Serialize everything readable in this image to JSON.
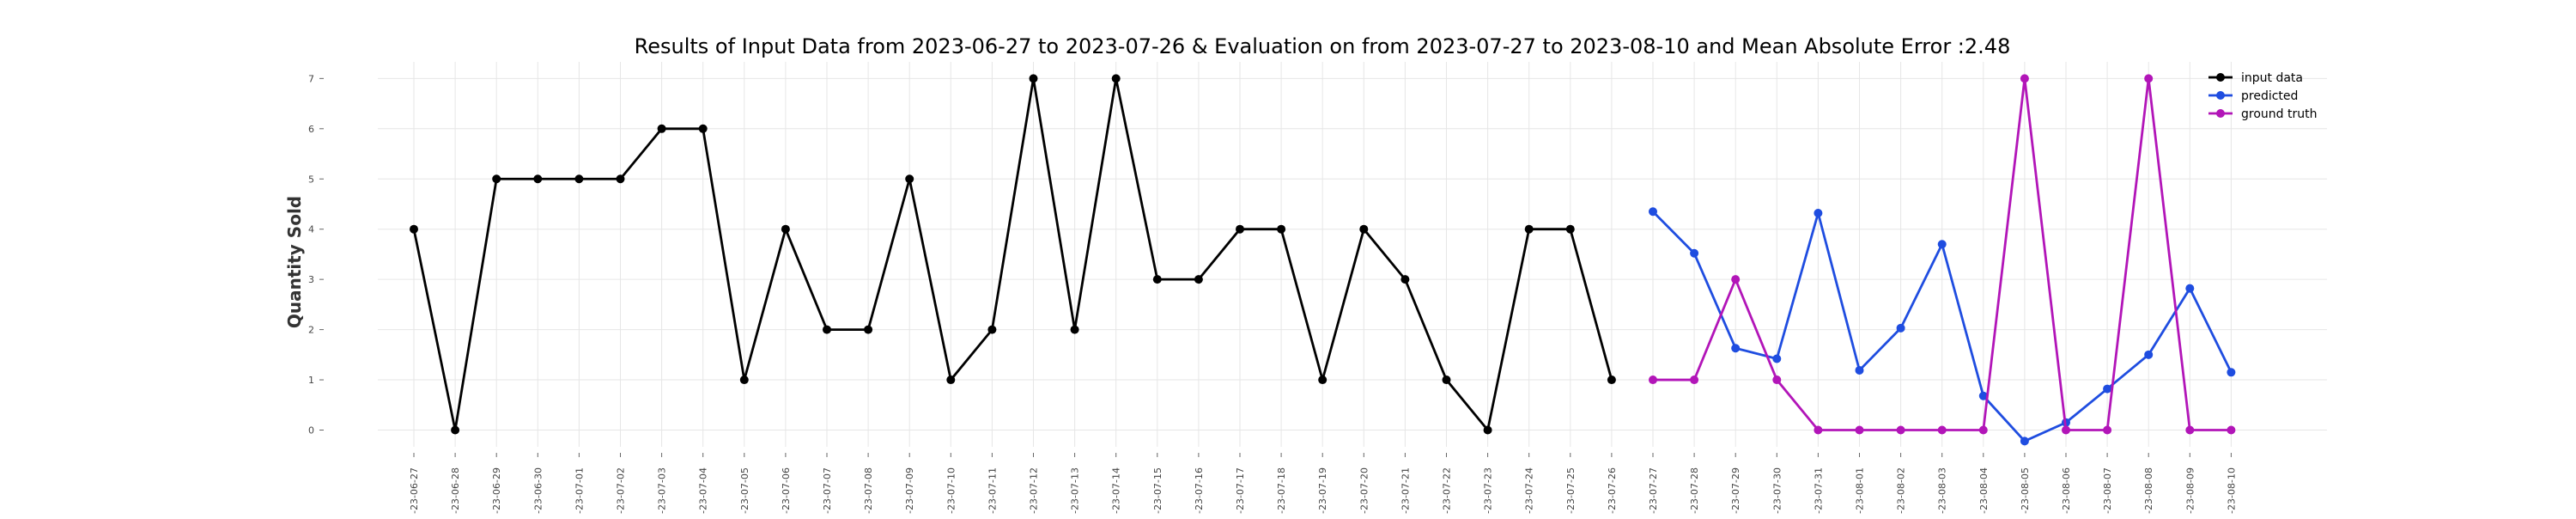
{
  "chart_data": {
    "type": "line",
    "title": "Results of Input Data from 2023-06-27 to 2023-07-26 & Evaluation on from 2023-07-27 to 2023-08-10 and Mean Absolute Error  :2.48",
    "xlabel": "",
    "ylabel": "Quantity Sold",
    "ylim": [
      -0.25,
      7.0
    ],
    "y_ticks": [
      0,
      1,
      2,
      3,
      4,
      5,
      6,
      7
    ],
    "grid": true,
    "legend_position": "top-right",
    "x": [
      "2023-06-27",
      "2023-06-28",
      "2023-06-29",
      "2023-06-30",
      "2023-07-01",
      "2023-07-02",
      "2023-07-03",
      "2023-07-04",
      "2023-07-05",
      "2023-07-06",
      "2023-07-07",
      "2023-07-08",
      "2023-07-09",
      "2023-07-10",
      "2023-07-11",
      "2023-07-12",
      "2023-07-13",
      "2023-07-14",
      "2023-07-15",
      "2023-07-16",
      "2023-07-17",
      "2023-07-18",
      "2023-07-19",
      "2023-07-20",
      "2023-07-21",
      "2023-07-22",
      "2023-07-23",
      "2023-07-24",
      "2023-07-25",
      "2023-07-26",
      "2023-07-27",
      "2023-07-28",
      "2023-07-29",
      "2023-07-30",
      "2023-07-31",
      "2023-08-01",
      "2023-08-02",
      "2023-08-03",
      "2023-08-04",
      "2023-08-05",
      "2023-08-06",
      "2023-08-07",
      "2023-08-08",
      "2023-08-09",
      "2023-08-10"
    ],
    "x_tick_labels": [
      "-23-06-27",
      "-23-06-28",
      "-23-06-29",
      "-23-06-30",
      "-23-07-01",
      "-23-07-02",
      "-23-07-03",
      "-23-07-04",
      "-23-07-05",
      "-23-07-06",
      "-23-07-07",
      "-23-07-08",
      "-23-07-09",
      "-23-07-10",
      "-23-07-11",
      "-23-07-12",
      "-23-07-13",
      "-23-07-14",
      "-23-07-15",
      "-23-07-16",
      "-23-07-17",
      "-23-07-18",
      "-23-07-19",
      "-23-07-20",
      "-23-07-21",
      "-23-07-22",
      "-23-07-23",
      "-23-07-24",
      "-23-07-25",
      "-23-07-26",
      "-23-07-27",
      "-23-07-28",
      "-23-07-29",
      "-23-07-30",
      "-23-07-31",
      "-23-08-01",
      "-23-08-02",
      "-23-08-03",
      "-23-08-04",
      "-23-08-05",
      "-23-08-06",
      "-23-08-07",
      "-23-08-08",
      "-23-08-09",
      "-23-08-10"
    ],
    "series": [
      {
        "name": "input data",
        "color": "#000000",
        "x": [
          "2023-06-27",
          "2023-06-28",
          "2023-06-29",
          "2023-06-30",
          "2023-07-01",
          "2023-07-02",
          "2023-07-03",
          "2023-07-04",
          "2023-07-05",
          "2023-07-06",
          "2023-07-07",
          "2023-07-08",
          "2023-07-09",
          "2023-07-10",
          "2023-07-11",
          "2023-07-12",
          "2023-07-13",
          "2023-07-14",
          "2023-07-15",
          "2023-07-16",
          "2023-07-17",
          "2023-07-18",
          "2023-07-19",
          "2023-07-20",
          "2023-07-21",
          "2023-07-22",
          "2023-07-23",
          "2023-07-24",
          "2023-07-25",
          "2023-07-26"
        ],
        "values": [
          4,
          0,
          5,
          5,
          5,
          5,
          6,
          6,
          1,
          4,
          2,
          2,
          5,
          1,
          2,
          7,
          2,
          7,
          3,
          3,
          4,
          4,
          1,
          4,
          3,
          1,
          0,
          4,
          4,
          1
        ]
      },
      {
        "name": "predicted",
        "color": "#1f4de0",
        "x": [
          "2023-07-27",
          "2023-07-28",
          "2023-07-29",
          "2023-07-30",
          "2023-07-31",
          "2023-08-01",
          "2023-08-02",
          "2023-08-03",
          "2023-08-04",
          "2023-08-05",
          "2023-08-06",
          "2023-08-07",
          "2023-08-08",
          "2023-08-09",
          "2023-08-10"
        ],
        "values": [
          4.35,
          3.52,
          1.63,
          1.42,
          4.32,
          1.19,
          2.03,
          3.7,
          0.68,
          -0.22,
          0.15,
          0.82,
          1.5,
          2.82,
          1.15
        ]
      },
      {
        "name": "ground truth",
        "color": "#b215b8",
        "x": [
          "2023-07-27",
          "2023-07-28",
          "2023-07-29",
          "2023-07-30",
          "2023-07-31",
          "2023-08-01",
          "2023-08-02",
          "2023-08-03",
          "2023-08-04",
          "2023-08-05",
          "2023-08-06",
          "2023-08-07",
          "2023-08-08",
          "2023-08-09",
          "2023-08-10"
        ],
        "values": [
          1,
          1,
          3,
          1,
          0,
          0,
          0,
          0,
          0,
          7,
          0,
          0,
          7,
          0,
          0
        ]
      }
    ]
  }
}
